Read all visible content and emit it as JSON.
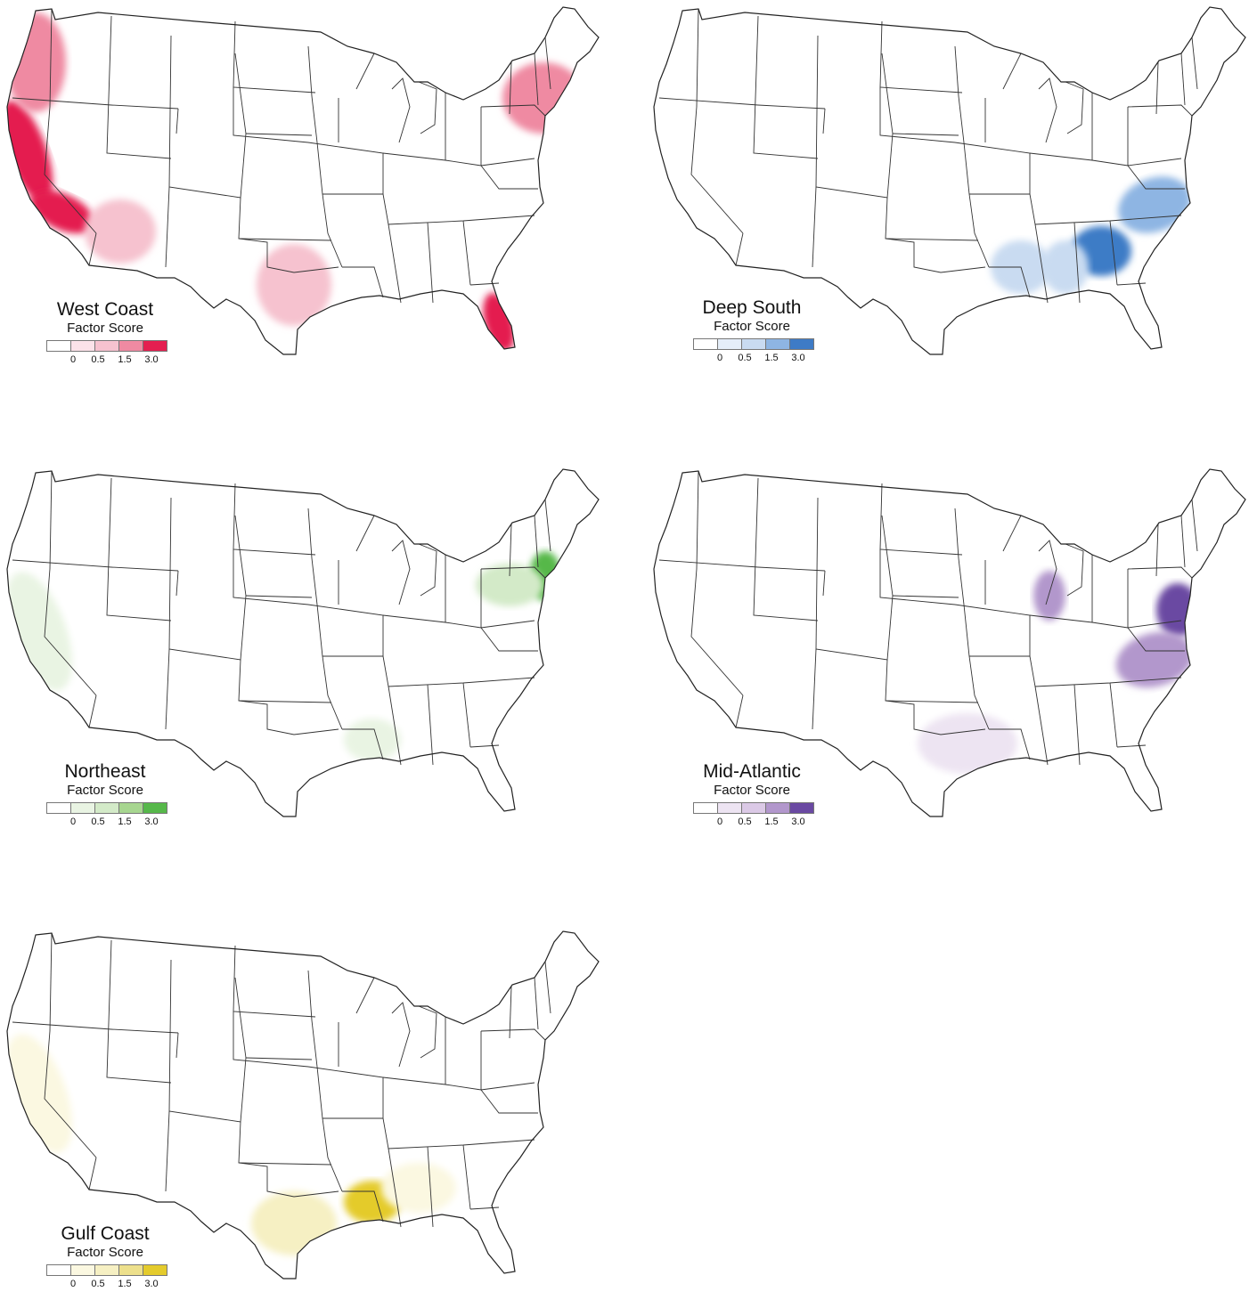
{
  "legend_subtitle": "Factor Score",
  "legend_ticks": [
    "0",
    "0.5",
    "1.5",
    "3.0"
  ],
  "panels": [
    {
      "title": "West Coast",
      "colors": [
        "#ffffff",
        "#fbe2e9",
        "#f6c2cf",
        "#ef8aa2",
        "#e41f50"
      ],
      "hotspots": [
        {
          "region": "California coast",
          "level": 4
        },
        {
          "region": "Southern California",
          "level": 4
        },
        {
          "region": "Oregon / Washington",
          "level": 3
        },
        {
          "region": "Arizona",
          "level": 2
        },
        {
          "region": "Florida",
          "level": 4
        },
        {
          "region": "New York / New England",
          "level": 3
        },
        {
          "region": "Texas",
          "level": 2
        }
      ]
    },
    {
      "title": "Deep South",
      "colors": [
        "#ffffff",
        "#e5eef9",
        "#c9dbf1",
        "#8eb5e3",
        "#3e7bc6"
      ],
      "hotspots": [
        {
          "region": "Georgia",
          "level": 4
        },
        {
          "region": "Carolinas",
          "level": 3
        },
        {
          "region": "Alabama",
          "level": 2
        },
        {
          "region": "Mississippi / Louisiana",
          "level": 2
        }
      ]
    },
    {
      "title": "Northeast",
      "colors": [
        "#ffffff",
        "#e9f4e3",
        "#d3eac8",
        "#a7d690",
        "#56b84a"
      ],
      "hotspots": [
        {
          "region": "New Jersey / New York",
          "level": 4
        },
        {
          "region": "Pennsylvania",
          "level": 2
        },
        {
          "region": "Louisiana",
          "level": 1
        },
        {
          "region": "California",
          "level": 1
        }
      ]
    },
    {
      "title": "Mid-Atlantic",
      "colors": [
        "#ffffff",
        "#ede4f2",
        "#dbc9e6",
        "#b297cc",
        "#6a49a2"
      ],
      "hotspots": [
        {
          "region": "Maryland / Delaware",
          "level": 4
        },
        {
          "region": "Virginia / North Carolina",
          "level": 3
        },
        {
          "region": "Indiana / Illinois",
          "level": 3
        },
        {
          "region": "Texas / Louisiana",
          "level": 1
        }
      ]
    },
    {
      "title": "Gulf Coast",
      "colors": [
        "#ffffff",
        "#fbf8e1",
        "#f6f0c3",
        "#ede08c",
        "#e4cb2c"
      ],
      "hotspots": [
        {
          "region": "Louisiana",
          "level": 4
        },
        {
          "region": "Texas coast",
          "level": 2
        },
        {
          "region": "Mississippi / Alabama",
          "level": 1
        },
        {
          "region": "California",
          "level": 1
        }
      ]
    }
  ]
}
